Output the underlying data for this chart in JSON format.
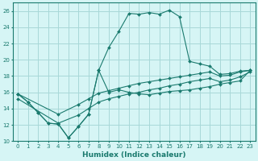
{
  "xlabel": "Humidex (Indice chaleur)",
  "background_color": "#d6f5f5",
  "grid_color": "#a8d8d8",
  "line_color": "#1a7a6e",
  "xlim": [
    -0.5,
    23.5
  ],
  "ylim": [
    10,
    27
  ],
  "yticks": [
    10,
    12,
    14,
    16,
    18,
    20,
    22,
    24,
    26
  ],
  "xticks": [
    0,
    1,
    2,
    3,
    4,
    5,
    6,
    7,
    8,
    9,
    10,
    11,
    12,
    13,
    14,
    15,
    16,
    17,
    18,
    19,
    20,
    21,
    22,
    23
  ],
  "series": [
    {
      "x": [
        0,
        1,
        2,
        3,
        4,
        5,
        6,
        7,
        8,
        9,
        10,
        11,
        12,
        13,
        14,
        15,
        16,
        17,
        18,
        19,
        20,
        21,
        22,
        23
      ],
      "y": [
        15.8,
        14.8,
        13.5,
        12.2,
        12.1,
        10.4,
        11.8,
        13.3,
        18.7,
        16.0,
        16.3,
        16.0,
        15.8,
        15.7,
        15.9,
        16.1,
        16.2,
        16.3,
        16.5,
        16.7,
        17.0,
        17.2,
        17.4,
        18.7
      ]
    },
    {
      "x": [
        0,
        1,
        2,
        3,
        4,
        5,
        6,
        7,
        8,
        9,
        10,
        11,
        12,
        13,
        14,
        15,
        16,
        17,
        18,
        19,
        20,
        21,
        22,
        23
      ],
      "y": [
        15.8,
        14.8,
        13.5,
        12.2,
        12.1,
        10.4,
        11.8,
        13.3,
        18.7,
        21.5,
        23.5,
        25.7,
        25.6,
        25.8,
        25.6,
        26.1,
        25.3,
        19.8,
        19.5,
        19.2,
        18.2,
        18.3,
        18.6,
        18.7
      ]
    },
    {
      "x": [
        0,
        4,
        6,
        7,
        8,
        9,
        10,
        11,
        12,
        13,
        14,
        15,
        16,
        17,
        18,
        19,
        20,
        21,
        22,
        23
      ],
      "y": [
        15.8,
        13.3,
        14.5,
        15.2,
        15.9,
        16.2,
        16.5,
        16.8,
        17.1,
        17.3,
        17.5,
        17.7,
        17.9,
        18.1,
        18.3,
        18.5,
        18.0,
        18.1,
        18.5,
        18.7
      ]
    },
    {
      "x": [
        0,
        4,
        6,
        7,
        8,
        9,
        10,
        11,
        12,
        13,
        14,
        15,
        16,
        17,
        18,
        19,
        20,
        21,
        22,
        23
      ],
      "y": [
        15.2,
        12.2,
        13.2,
        14.0,
        14.8,
        15.2,
        15.5,
        15.8,
        16.0,
        16.3,
        16.5,
        16.8,
        17.0,
        17.3,
        17.5,
        17.7,
        17.3,
        17.5,
        17.9,
        18.5
      ]
    }
  ]
}
